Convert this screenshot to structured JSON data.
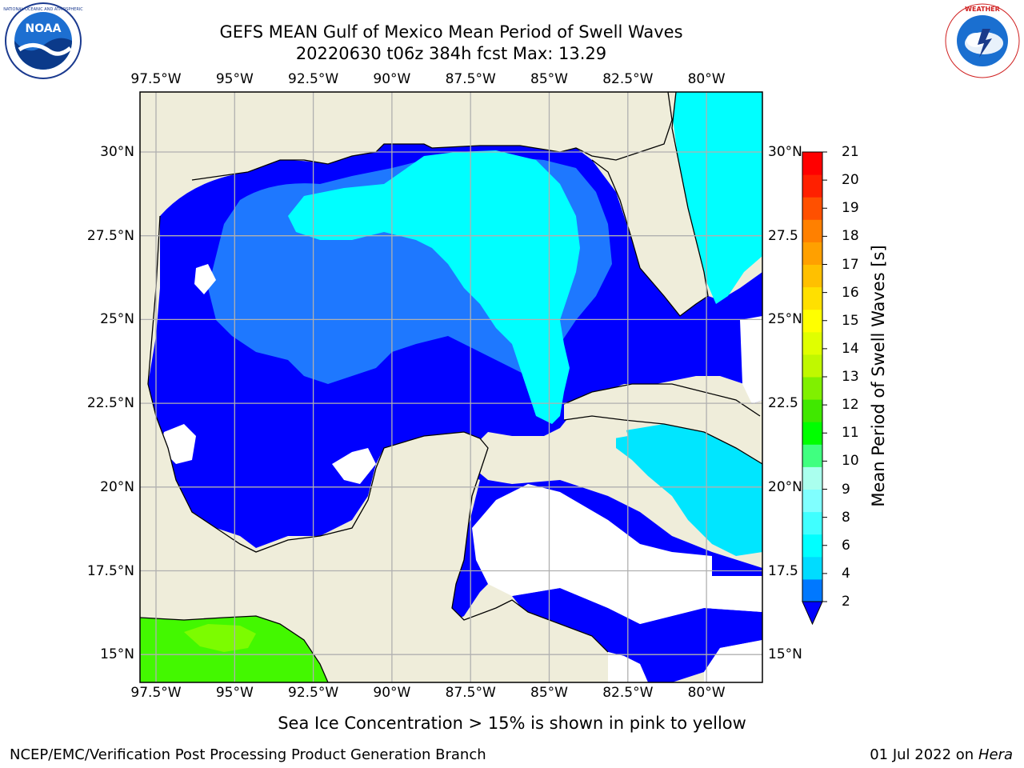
{
  "header": {
    "title_line1": "GEFS MEAN Gulf of Mexico Mean Period of Swell Waves",
    "title_line2": "20220630 t06z 384h fcst   Max: 13.29"
  },
  "logos": {
    "left": {
      "name": "noaa-logo",
      "text": "NOAA",
      "ring_text": "NATIONAL OCEANIC AND ATMOSPHERIC ADMINISTRATION · U.S. DEPARTMENT OF COMMERCE"
    },
    "right": {
      "name": "nws-logo",
      "ring_text": "NATIONAL WEATHER SERVICE"
    }
  },
  "map": {
    "lon_labels_top": [
      "97.5°W",
      "95°W",
      "92.5°W",
      "90°W",
      "87.5°W",
      "85°W",
      "82.5°W",
      "80°W"
    ],
    "lon_labels_bottom": [
      "97.5°W",
      "95°W",
      "92.5°W",
      "90°W",
      "87.5°W",
      "85°W",
      "82.5°W",
      "80°W"
    ],
    "lat_labels_left": [
      "30°N",
      "27.5°N",
      "25°N",
      "22.5°N",
      "20°N",
      "17.5°N",
      "15°N"
    ],
    "lat_labels_right": [
      "30°N",
      "27.5",
      "25°N",
      "22.5",
      "20°N",
      "17.5",
      "15°N"
    ],
    "colors": {
      "land": "#efedda",
      "ocean_deep": "#0000ff",
      "ocean_mid": "#1e78ff",
      "ocean_light": "#00e6ff",
      "ocean_cyan": "#00ffff",
      "green": "#43f800",
      "green_light": "#7cfc00",
      "missing": "#ffffff",
      "grid": "#b0b0b0"
    }
  },
  "colorbar": {
    "label": "Mean Period of Swell Waves [s]",
    "ticks": [
      "21",
      "20",
      "19",
      "18",
      "17",
      "16",
      "15",
      "14",
      "13",
      "12",
      "11",
      "10",
      "9",
      "8",
      "6",
      "4",
      "2"
    ],
    "colors_bottom_to_top": [
      "#0078ff",
      "#00dcff",
      "#00ffff",
      "#40ffff",
      "#80ffff",
      "#aaffee",
      "#40ff80",
      "#00ff00",
      "#40e800",
      "#80f000",
      "#c0f800",
      "#e0ff00",
      "#ffff00",
      "#ffe000",
      "#ffc000",
      "#ffa000",
      "#ff8000",
      "#ff5000",
      "#ff2000",
      "#ff0000"
    ]
  },
  "note": "Sea Ice Concentration > 15% is shown in pink to yellow",
  "footer": {
    "left": "NCEP/EMC/Verification Post Processing Product Generation Branch",
    "right_prefix": "01 Jul 2022 on ",
    "right_italic": "Hera"
  }
}
